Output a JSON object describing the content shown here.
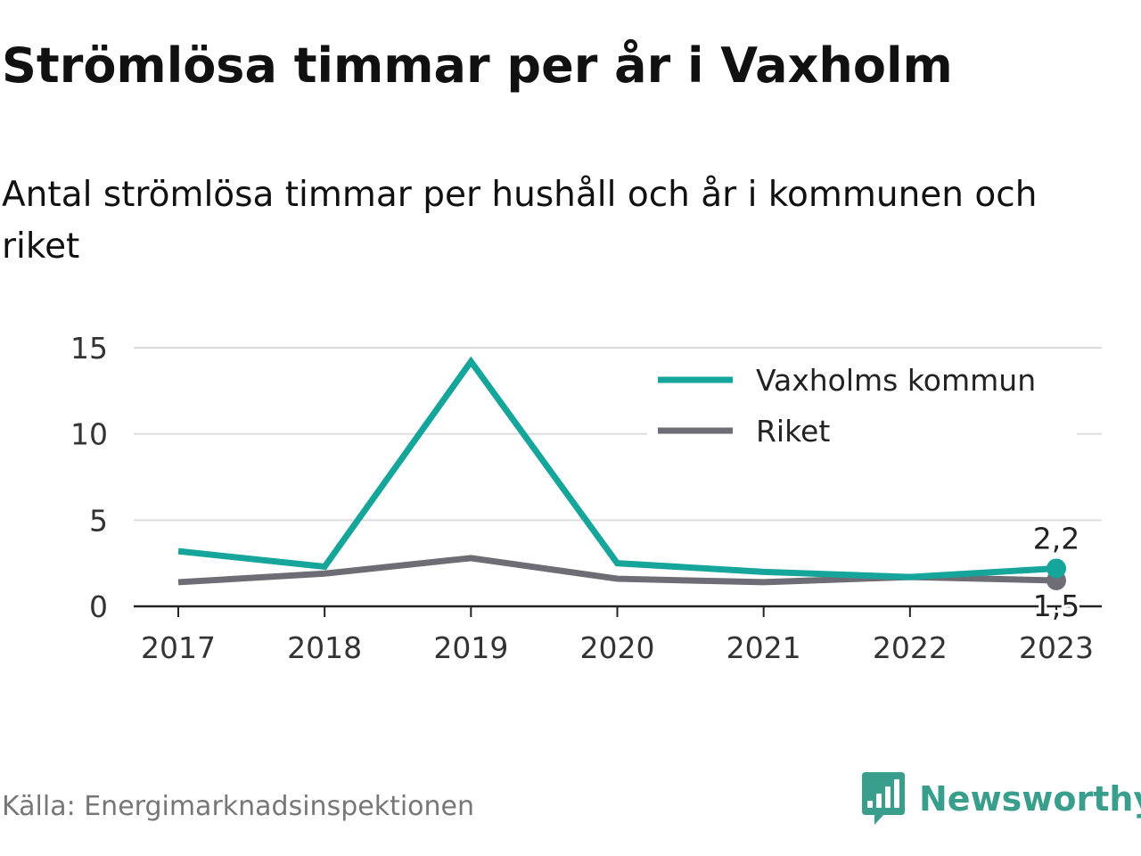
{
  "header": {
    "title": "Strömlösa timmar per år i Vaxholm",
    "subtitle": "Antal strömlösa timmar per hushåll och år i kommunen och riket"
  },
  "footer": {
    "source": "Källa: Energimarknadsinspektionen",
    "brand": "Newsworthy",
    "brand_icon": "newsworthy-logo-icon",
    "brand_color": "#3a9e8d"
  },
  "chart_data": {
    "type": "line",
    "x": [
      "2017",
      "2018",
      "2019",
      "2020",
      "2021",
      "2022",
      "2023"
    ],
    "ylim": [
      0,
      15
    ],
    "yticks": [
      "0",
      "5",
      "10",
      "15"
    ],
    "grid": true,
    "legend_position": "top-right",
    "series": [
      {
        "name": "Vaxholms kommun",
        "color": "#16a59b",
        "values": [
          3.2,
          2.3,
          14.2,
          2.5,
          2.0,
          1.7,
          2.2
        ],
        "end_label": "2,2"
      },
      {
        "name": "Riket",
        "color": "#6e6d75",
        "values": [
          1.4,
          1.9,
          2.8,
          1.6,
          1.4,
          1.7,
          1.5
        ],
        "end_label": "1,5"
      }
    ]
  }
}
